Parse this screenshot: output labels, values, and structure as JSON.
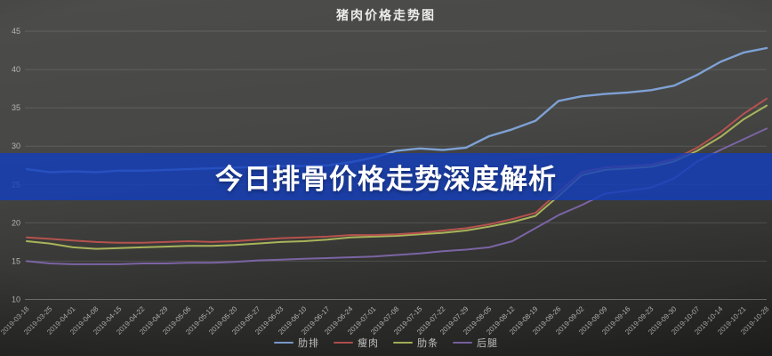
{
  "banner": {
    "text": "今日排骨价格走势深度解析",
    "background": "rgba(20,62,188,0.82)"
  },
  "colors": {
    "background_top": "#4c4c4a",
    "background_bottom": "#222221",
    "grid": "rgba(255,255,255,0.13)",
    "axis_label": "#b4b4b4",
    "title_text": "#ececec",
    "banner_text": "#ffffff"
  },
  "chart_data": {
    "type": "line",
    "title": "猪肉价格走势图",
    "xlabel": "",
    "ylabel": "",
    "ylim": [
      10,
      45
    ],
    "ytick_step": 5,
    "grid": true,
    "legend_position": "bottom",
    "categories": [
      "2019-03-18",
      "2019-03-25",
      "2019-04-01",
      "2019-04-08",
      "2019-04-15",
      "2019-04-22",
      "2019-04-29",
      "2019-05-06",
      "2019-05-13",
      "2019-05-20",
      "2019-05-27",
      "2019-06-03",
      "2019-06-10",
      "2019-06-17",
      "2019-06-24",
      "2019-07-01",
      "2019-07-08",
      "2019-07-15",
      "2019-07-22",
      "2019-07-29",
      "2019-08-05",
      "2019-08-12",
      "2019-08-19",
      "2019-08-26",
      "2019-09-02",
      "2019-09-09",
      "2019-09-16",
      "2019-09-23",
      "2019-09-30",
      "2019-10-07",
      "2019-10-14",
      "2019-10-21",
      "2019-10-28"
    ],
    "series": [
      {
        "name": "肋排",
        "color": "#7ea1d4",
        "values": [
          27.0,
          26.6,
          26.7,
          26.6,
          26.8,
          26.8,
          26.9,
          27.0,
          27.1,
          27.2,
          27.3,
          27.4,
          27.4,
          27.5,
          27.9,
          28.5,
          29.4,
          29.7,
          29.5,
          29.8,
          31.3,
          32.2,
          33.3,
          35.9,
          36.5,
          36.8,
          37.0,
          37.3,
          37.9,
          39.3,
          41.0,
          42.2,
          42.8
        ]
      },
      {
        "name": "瘦肉",
        "color": "#b5524e",
        "values": [
          18.1,
          17.9,
          17.7,
          17.5,
          17.4,
          17.4,
          17.5,
          17.6,
          17.5,
          17.6,
          17.8,
          18.0,
          18.1,
          18.2,
          18.4,
          18.4,
          18.5,
          18.7,
          19.0,
          19.3,
          19.8,
          20.5,
          21.3,
          24.0,
          26.6,
          27.2,
          27.4,
          27.6,
          28.3,
          29.8,
          31.8,
          34.2,
          36.2
        ]
      },
      {
        "name": "肋条",
        "color": "#a9b45a",
        "values": [
          17.6,
          17.3,
          16.8,
          16.6,
          16.7,
          16.8,
          16.9,
          17.0,
          17.0,
          17.1,
          17.3,
          17.5,
          17.6,
          17.8,
          18.1,
          18.2,
          18.3,
          18.5,
          18.7,
          19.0,
          19.5,
          20.1,
          20.9,
          23.5,
          26.2,
          26.9,
          27.1,
          27.3,
          28.0,
          29.4,
          31.2,
          33.5,
          35.3
        ]
      },
      {
        "name": "后腿",
        "color": "#7b64a4",
        "values": [
          15.0,
          14.7,
          14.6,
          14.6,
          14.6,
          14.7,
          14.7,
          14.8,
          14.8,
          14.9,
          15.1,
          15.2,
          15.3,
          15.4,
          15.5,
          15.6,
          15.8,
          16.0,
          16.3,
          16.5,
          16.8,
          17.6,
          19.3,
          21.0,
          22.3,
          23.8,
          24.2,
          24.6,
          25.8,
          28.0,
          29.5,
          30.9,
          32.3
        ]
      }
    ]
  }
}
